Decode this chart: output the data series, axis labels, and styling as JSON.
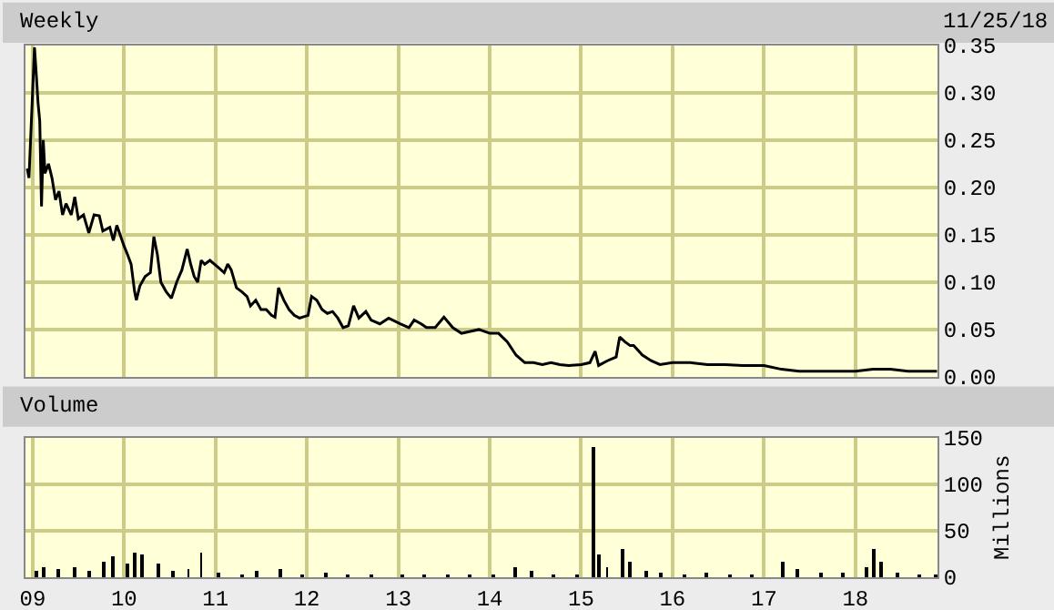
{
  "chart_data": [
    {
      "type": "line",
      "title": "Weekly",
      "annotations": [
        "11/25/18"
      ],
      "color": "#000000",
      "grid": true,
      "tick_labels": "y",
      "x": [
        "2008-12-10",
        "2008-12-17",
        "2009-01-08",
        "2009-01-15",
        "2009-01-22",
        "2009-01-29",
        "2009-02-05",
        "2009-02-12",
        "2009-02-19",
        "2009-03-05",
        "2009-03-19",
        "2009-04-02",
        "2009-04-16",
        "2009-04-30",
        "2009-05-14",
        "2009-06-04",
        "2009-06-18",
        "2009-07-02",
        "2009-07-23",
        "2009-08-13",
        "2009-09-03",
        "2009-09-24",
        "2009-10-08",
        "2009-11-05",
        "2009-11-19",
        "2009-12-03",
        "2010-01-01",
        "2010-01-15",
        "2010-01-29",
        "2010-02-12",
        "2010-02-19",
        "2010-03-05",
        "2010-03-26",
        "2010-04-16",
        "2010-04-30",
        "2010-05-14",
        "2010-05-28",
        "2010-06-18",
        "2010-07-09",
        "2010-07-30",
        "2010-08-20",
        "2010-09-10",
        "2010-09-24",
        "2010-10-08",
        "2010-10-22",
        "2010-11-05",
        "2010-11-19",
        "2010-12-10",
        "2011-01-15",
        "2011-02-05",
        "2011-02-19",
        "2011-03-05",
        "2011-03-26",
        "2011-04-16",
        "2011-05-07",
        "2011-05-21",
        "2011-06-11",
        "2011-07-02",
        "2011-07-23",
        "2011-08-13",
        "2011-08-27",
        "2011-09-10",
        "2011-10-01",
        "2011-10-22",
        "2011-11-12",
        "2011-12-03",
        "2012-01-06",
        "2012-01-20",
        "2012-02-10",
        "2012-03-02",
        "2012-03-23",
        "2012-04-13",
        "2012-05-04",
        "2012-05-25",
        "2012-06-15",
        "2012-07-06",
        "2012-07-27",
        "2012-08-24",
        "2012-09-14",
        "2012-10-19",
        "2012-11-23",
        "2013-01-08",
        "2013-02-12",
        "2013-03-05",
        "2013-04-02",
        "2013-04-23",
        "2013-05-28",
        "2013-07-02",
        "2013-08-06",
        "2013-09-10",
        "2013-10-15",
        "2013-11-19",
        "2014-01-01",
        "2014-02-05",
        "2014-03-12",
        "2014-04-16",
        "2014-05-21",
        "2014-06-25",
        "2014-07-30",
        "2014-09-03",
        "2014-10-08",
        "2014-11-12",
        "2015-01-01",
        "2015-02-05",
        "2015-02-26",
        "2015-03-12",
        "2015-04-16",
        "2015-05-21",
        "2015-06-04",
        "2015-06-25",
        "2015-07-16",
        "2015-07-30",
        "2015-09-03",
        "2015-10-08",
        "2015-11-12",
        "2016-01-01",
        "2016-03-12",
        "2016-05-21",
        "2016-07-30",
        "2016-10-08",
        "2017-01-01",
        "2017-03-12",
        "2017-05-21",
        "2017-07-30",
        "2017-10-08",
        "2018-01-01",
        "2018-03-12",
        "2018-05-21",
        "2018-07-30",
        "2018-10-08",
        "2018-11-23"
      ],
      "values": [
        0.22,
        0.21,
        0.348,
        0.32,
        0.29,
        0.27,
        0.18,
        0.25,
        0.215,
        0.225,
        0.21,
        0.187,
        0.196,
        0.171,
        0.183,
        0.171,
        0.19,
        0.167,
        0.171,
        0.152,
        0.171,
        0.17,
        0.154,
        0.158,
        0.144,
        0.16,
        0.138,
        0.129,
        0.119,
        0.09,
        0.081,
        0.096,
        0.106,
        0.11,
        0.148,
        0.129,
        0.1,
        0.09,
        0.083,
        0.1,
        0.113,
        0.135,
        0.119,
        0.106,
        0.1,
        0.123,
        0.119,
        0.123,
        0.115,
        0.11,
        0.119,
        0.113,
        0.094,
        0.09,
        0.085,
        0.075,
        0.081,
        0.071,
        0.071,
        0.065,
        0.063,
        0.094,
        0.081,
        0.071,
        0.065,
        0.062,
        0.065,
        0.085,
        0.081,
        0.071,
        0.067,
        0.069,
        0.062,
        0.052,
        0.054,
        0.075,
        0.062,
        0.069,
        0.06,
        0.056,
        0.062,
        0.056,
        0.052,
        0.06,
        0.056,
        0.052,
        0.052,
        0.063,
        0.052,
        0.046,
        0.048,
        0.05,
        0.046,
        0.046,
        0.037,
        0.023,
        0.015,
        0.015,
        0.013,
        0.015,
        0.013,
        0.012,
        0.013,
        0.015,
        0.027,
        0.012,
        0.017,
        0.021,
        0.042,
        0.037,
        0.033,
        0.033,
        0.023,
        0.017,
        0.013,
        0.015,
        0.015,
        0.013,
        0.013,
        0.012,
        0.012,
        0.008,
        0.006,
        0.006,
        0.006,
        0.006,
        0.008,
        0.008,
        0.006,
        0.006,
        0.006
      ],
      "xlim": [
        "2008-12-03",
        "2018-11-25"
      ],
      "xticks": [
        {
          "value": "2009-01-01",
          "label": null
        },
        {
          "value": "2010-01-01",
          "label": null
        },
        {
          "value": "2011-01-01",
          "label": null
        },
        {
          "value": "2012-01-01",
          "label": null
        },
        {
          "value": "2013-01-01",
          "label": null
        },
        {
          "value": "2014-01-01",
          "label": null
        },
        {
          "value": "2015-01-01",
          "label": null
        },
        {
          "value": "2016-01-01",
          "label": null
        },
        {
          "value": "2017-01-01",
          "label": null
        },
        {
          "value": "2018-01-01",
          "label": null
        }
      ],
      "ylim": [
        0,
        0.35
      ],
      "yticks": [
        {
          "value": 0,
          "label": "0.00"
        },
        {
          "value": 0.05,
          "label": "0.05"
        },
        {
          "value": 0.1,
          "label": "0.10"
        },
        {
          "value": 0.15,
          "label": "0.15"
        },
        {
          "value": 0.2,
          "label": "0.20"
        },
        {
          "value": 0.25,
          "label": "0.25"
        },
        {
          "value": 0.3,
          "label": "0.30"
        },
        {
          "value": 0.35,
          "label": "0.35"
        }
      ]
    },
    {
      "type": "bar",
      "title": "Volume",
      "ylabel": "Millions",
      "color": "#000000",
      "grid": true,
      "x": [
        "2009-01-15",
        "2009-02-15",
        "2009-04-15",
        "2009-06-15",
        "2009-08-15",
        "2009-10-15",
        "2009-11-15",
        "2010-01-15",
        "2010-02-15",
        "2010-03-15",
        "2010-05-15",
        "2010-07-15",
        "2010-09-15",
        "2010-11-05",
        "2011-01-15",
        "2011-04-15",
        "2011-06-15",
        "2011-09-15",
        "2011-12-15",
        "2012-03-15",
        "2012-06-15",
        "2012-09-15",
        "2013-01-15",
        "2013-04-15",
        "2013-07-15",
        "2013-10-15",
        "2014-01-15",
        "2014-04-15",
        "2014-06-15",
        "2014-09-15",
        "2014-12-15",
        "2015-02-19",
        "2015-03-12",
        "2015-04-15",
        "2015-06-15",
        "2015-07-15",
        "2015-09-15",
        "2015-11-15",
        "2016-02-15",
        "2016-05-15",
        "2016-08-15",
        "2016-11-15",
        "2017-03-15",
        "2017-05-15",
        "2017-08-15",
        "2017-11-15",
        "2018-02-15",
        "2018-03-15",
        "2018-04-15",
        "2018-06-15",
        "2018-09-15",
        "2018-11-15"
      ],
      "values": [
        8,
        12,
        10,
        12,
        8,
        18,
        22,
        15,
        26,
        25,
        15,
        8,
        10,
        26,
        6,
        4,
        8,
        10,
        4,
        6,
        4,
        3,
        3,
        2,
        2,
        2,
        3,
        12,
        8,
        3,
        4,
        140,
        25,
        12,
        30,
        18,
        8,
        5,
        3,
        5,
        4,
        4,
        18,
        10,
        5,
        6,
        12,
        30,
        18,
        6,
        4,
        3
      ],
      "xlim": [
        "2008-12-03",
        "2018-11-25"
      ],
      "xticks": [
        {
          "value": "2009-01-01",
          "label": "09"
        },
        {
          "value": "2010-01-01",
          "label": "10"
        },
        {
          "value": "2011-01-01",
          "label": "11"
        },
        {
          "value": "2012-01-01",
          "label": "12"
        },
        {
          "value": "2013-01-01",
          "label": "13"
        },
        {
          "value": "2014-01-01",
          "label": "14"
        },
        {
          "value": "2015-01-01",
          "label": "15"
        },
        {
          "value": "2016-01-01",
          "label": "16"
        },
        {
          "value": "2017-01-01",
          "label": "17"
        },
        {
          "value": "2018-01-01",
          "label": "18"
        }
      ],
      "ylim": [
        0,
        150
      ],
      "yticks": [
        0,
        50,
        100,
        150
      ]
    }
  ]
}
